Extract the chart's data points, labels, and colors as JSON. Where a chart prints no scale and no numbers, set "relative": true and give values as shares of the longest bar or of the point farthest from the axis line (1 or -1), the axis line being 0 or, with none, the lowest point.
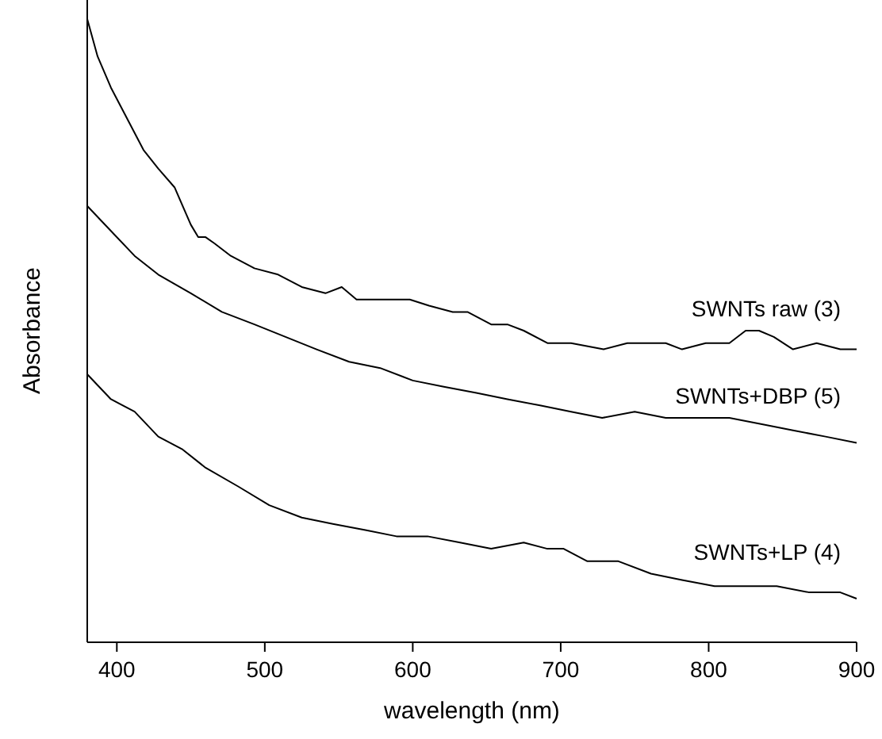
{
  "chart_data": {
    "type": "line",
    "relative": true,
    "xlabel": "wavelength (nm)",
    "ylabel": "Absorbance",
    "xlim": [
      380,
      900
    ],
    "xticks": [
      400,
      500,
      600,
      700,
      800,
      900
    ],
    "legend": false,
    "marker": "none",
    "line_style": "solid",
    "series": [
      {
        "name": "SWNTs raw (3)",
        "color": "#000000",
        "x": [
          380,
          387,
          396,
          407,
          418,
          428,
          439,
          450,
          455,
          460,
          466,
          477,
          493,
          509,
          525,
          541,
          552,
          562,
          584,
          598,
          611,
          627,
          637,
          653,
          664,
          675,
          691,
          707,
          729,
          745,
          761,
          771,
          782,
          798,
          814,
          825,
          834,
          844,
          857,
          873,
          889,
          900
        ],
        "values": [
          1.0,
          0.94,
          0.89,
          0.84,
          0.79,
          0.76,
          0.73,
          0.67,
          0.65,
          0.65,
          0.64,
          0.62,
          0.6,
          0.59,
          0.57,
          0.56,
          0.57,
          0.55,
          0.55,
          0.55,
          0.54,
          0.53,
          0.53,
          0.51,
          0.51,
          0.5,
          0.48,
          0.48,
          0.47,
          0.48,
          0.48,
          0.48,
          0.47,
          0.48,
          0.48,
          0.5,
          0.5,
          0.49,
          0.47,
          0.48,
          0.47,
          0.47
        ]
      },
      {
        "name": "SWNTs+DBP (5)",
        "color": "#000000",
        "x": [
          380,
          396,
          412,
          428,
          450,
          471,
          493,
          514,
          535,
          557,
          578,
          600,
          621,
          643,
          664,
          686,
          707,
          728,
          750,
          771,
          793,
          814,
          836,
          857,
          879,
          900
        ],
        "values": [
          0.7,
          0.66,
          0.62,
          0.59,
          0.56,
          0.53,
          0.51,
          0.49,
          0.47,
          0.45,
          0.44,
          0.42,
          0.41,
          0.4,
          0.39,
          0.38,
          0.37,
          0.36,
          0.37,
          0.36,
          0.36,
          0.36,
          0.35,
          0.34,
          0.33,
          0.32
        ]
      },
      {
        "name": "SWNTs+LP (4)",
        "color": "#000000",
        "x": [
          380,
          396,
          412,
          428,
          444,
          460,
          482,
          503,
          525,
          546,
          568,
          589,
          610,
          632,
          653,
          675,
          691,
          702,
          718,
          739,
          761,
          782,
          804,
          825,
          846,
          868,
          889,
          900
        ],
        "values": [
          0.43,
          0.39,
          0.37,
          0.33,
          0.31,
          0.28,
          0.25,
          0.22,
          0.2,
          0.19,
          0.18,
          0.17,
          0.17,
          0.16,
          0.15,
          0.16,
          0.15,
          0.15,
          0.13,
          0.13,
          0.11,
          0.1,
          0.09,
          0.09,
          0.09,
          0.08,
          0.08,
          0.07
        ]
      }
    ]
  }
}
